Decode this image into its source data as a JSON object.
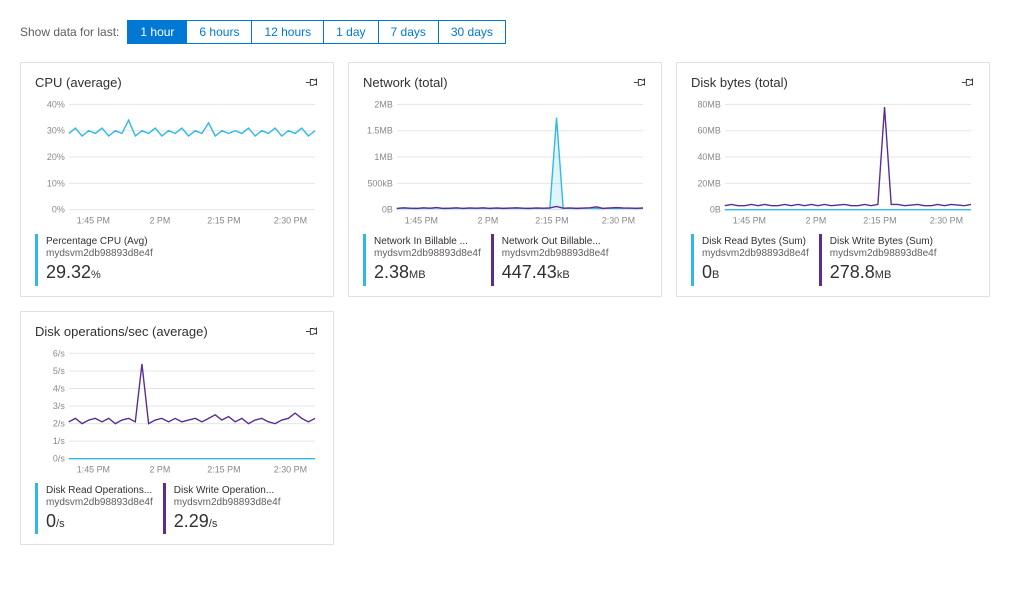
{
  "time_filter": {
    "label": "Show data for last:",
    "options": [
      "1 hour",
      "6 hours",
      "12 hours",
      "1 day",
      "7 days",
      "30 days"
    ],
    "active_index": 0
  },
  "colors": {
    "cyan": "#2fb8e9",
    "purple": "#5c2d91",
    "grid": "#e5e5e5",
    "label": "#888888"
  },
  "x_axis": {
    "labels": [
      "1:45 PM",
      "2 PM",
      "2:15 PM",
      "2:30 PM"
    ],
    "positions": [
      0.1,
      0.37,
      0.63,
      0.9
    ]
  },
  "charts": [
    {
      "title": "CPU (average)",
      "y_ticks": [
        "40%",
        "30%",
        "20%",
        "10%",
        "0%"
      ],
      "y_tick_vals": [
        40,
        30,
        20,
        10,
        0
      ],
      "ylim": [
        0,
        40
      ],
      "series": [
        {
          "color": "#2fb8e9",
          "data": [
            29,
            31,
            28,
            30,
            29,
            31,
            28,
            30,
            29,
            34,
            28,
            30,
            29,
            31,
            28,
            30,
            29,
            31,
            28,
            30,
            29,
            33,
            28,
            30,
            29,
            30,
            29,
            31,
            28,
            30,
            29,
            31,
            28,
            30,
            29,
            31,
            28,
            30
          ],
          "fill": false
        }
      ],
      "metrics": [
        {
          "color": "#2fb8e9",
          "label": "Percentage CPU (Avg)",
          "sub": "mydsvm2db98893d8e4f",
          "value": "29.32",
          "unit": "%"
        }
      ]
    },
    {
      "title": "Network (total)",
      "y_ticks": [
        "2MB",
        "1.5MB",
        "1MB",
        "500kB",
        "0B"
      ],
      "y_tick_vals": [
        2000,
        1500,
        1000,
        500,
        0
      ],
      "ylim": [
        0,
        2000
      ],
      "series": [
        {
          "color": "#2fb8e9",
          "data": [
            20,
            30,
            25,
            20,
            30,
            25,
            35,
            20,
            25,
            30,
            22,
            28,
            25,
            30,
            22,
            28,
            22,
            26,
            30,
            25,
            22,
            28,
            25,
            28,
            1750,
            25,
            28,
            22,
            26,
            30,
            25,
            22,
            28,
            25,
            28,
            26,
            22,
            28
          ],
          "fill": true
        },
        {
          "color": "#5c2d91",
          "data": [
            25,
            35,
            28,
            25,
            35,
            28,
            40,
            25,
            28,
            35,
            25,
            32,
            28,
            35,
            25,
            32,
            25,
            30,
            35,
            28,
            25,
            32,
            28,
            32,
            60,
            28,
            32,
            25,
            30,
            35,
            55,
            25,
            32,
            40,
            32,
            30,
            25,
            32
          ],
          "fill": false
        }
      ],
      "metrics": [
        {
          "color": "#2fb8e9",
          "label": "Network In Billable ...",
          "sub": "mydsvm2db98893d8e4f",
          "value": "2.38",
          "unit": "MB"
        },
        {
          "color": "#5c2d91",
          "label": "Network Out Billable...",
          "sub": "mydsvm2db98893d8e4f",
          "value": "447.43",
          "unit": "kB"
        }
      ]
    },
    {
      "title": "Disk bytes (total)",
      "y_ticks": [
        "80MB",
        "60MB",
        "40MB",
        "20MB",
        "0B"
      ],
      "y_tick_vals": [
        80,
        60,
        40,
        20,
        0
      ],
      "ylim": [
        0,
        80
      ],
      "series": [
        {
          "color": "#2fb8e9",
          "data": [
            0,
            0,
            0,
            0,
            0,
            0,
            0,
            0,
            0,
            0,
            0,
            0,
            0,
            0,
            0,
            0,
            0,
            0,
            0,
            0,
            0,
            0,
            0,
            0,
            0,
            0,
            0,
            0,
            0,
            0,
            0,
            0,
            0,
            0,
            0,
            0,
            0,
            0
          ],
          "fill": true
        },
        {
          "color": "#5c2d91",
          "data": [
            3,
            4,
            3,
            3,
            4,
            3,
            4,
            3,
            3,
            4,
            3,
            4,
            3,
            4,
            3,
            4,
            3,
            3.5,
            4,
            3,
            3,
            4,
            3,
            4,
            78,
            4,
            4,
            3,
            3.5,
            4,
            3,
            3,
            4,
            3,
            4,
            3.5,
            3,
            4
          ],
          "fill": false
        }
      ],
      "metrics": [
        {
          "color": "#2fb8e9",
          "label": "Disk Read Bytes (Sum)",
          "sub": "mydsvm2db98893d8e4f",
          "value": "0",
          "unit": "B"
        },
        {
          "color": "#5c2d91",
          "label": "Disk Write Bytes (Sum)",
          "sub": "mydsvm2db98893d8e4f",
          "value": "278.8",
          "unit": "MB"
        }
      ]
    },
    {
      "title": "Disk operations/sec (average)",
      "y_ticks": [
        "6/s",
        "5/s",
        "4/s",
        "3/s",
        "2/s",
        "1/s",
        "0/s"
      ],
      "y_tick_vals": [
        6,
        5,
        4,
        3,
        2,
        1,
        0
      ],
      "ylim": [
        0,
        6
      ],
      "series": [
        {
          "color": "#2fb8e9",
          "data": [
            0,
            0,
            0,
            0,
            0,
            0,
            0,
            0,
            0,
            0,
            0,
            0,
            0,
            0,
            0,
            0,
            0,
            0,
            0,
            0,
            0,
            0,
            0,
            0,
            0,
            0,
            0,
            0,
            0,
            0,
            0,
            0,
            0,
            0,
            0,
            0,
            0,
            0
          ],
          "fill": true
        },
        {
          "color": "#5c2d91",
          "data": [
            2.1,
            2.3,
            2.0,
            2.2,
            2.3,
            2.1,
            2.3,
            2.0,
            2.2,
            2.3,
            2.1,
            5.4,
            2.0,
            2.2,
            2.3,
            2.1,
            2.3,
            2.1,
            2.2,
            2.3,
            2.1,
            2.3,
            2.5,
            2.2,
            2.4,
            2.1,
            2.3,
            2.0,
            2.2,
            2.3,
            2.1,
            2.0,
            2.2,
            2.3,
            2.6,
            2.3,
            2.1,
            2.3
          ],
          "fill": false
        }
      ],
      "metrics": [
        {
          "color": "#2fb8e9",
          "label": "Disk Read Operations...",
          "sub": "mydsvm2db98893d8e4f",
          "value": "0",
          "unit": "/s"
        },
        {
          "color": "#5c2d91",
          "label": "Disk Write Operation...",
          "sub": "mydsvm2db98893d8e4f",
          "value": "2.29",
          "unit": "/s"
        }
      ]
    }
  ]
}
